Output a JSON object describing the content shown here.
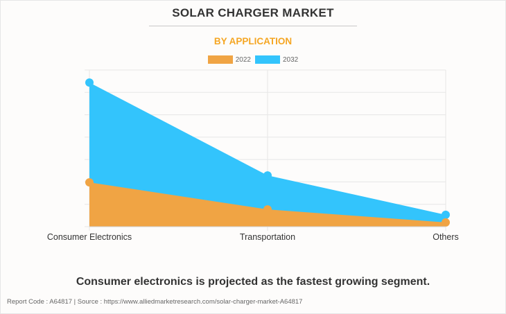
{
  "header": {
    "title": "SOLAR CHARGER MARKET",
    "subtitle": "BY APPLICATION"
  },
  "caption": "Consumer electronics is projected as the fastest growing segment.",
  "footer": "Report Code : A64817  |  Source : https://www.alliedmarketresearch.com/solar-charger-market-A64817",
  "colors": {
    "series_2022": "#f0a444",
    "series_2032": "#33c4fc",
    "subtitle": "#f5a623",
    "grid": "#e6e6e6"
  },
  "chart_data": {
    "type": "area",
    "title": "SOLAR CHARGER MARKET",
    "subtitle": "BY APPLICATION",
    "xlabel": "",
    "ylabel": "",
    "categories": [
      "Consumer Electronics",
      "Transportation",
      "Others"
    ],
    "series": [
      {
        "name": "2032",
        "color": "#33c4fc",
        "values": [
          6.44,
          2.29,
          0.53
        ]
      },
      {
        "name": "2022",
        "color": "#f0a444",
        "values": [
          1.98,
          0.77,
          0.19
        ]
      }
    ],
    "ylim": [
      0,
      7
    ],
    "y_gridlines": 7,
    "y_ticks_labeled": false,
    "grid": true,
    "legend": {
      "position": "top-center",
      "entries": [
        "2022",
        "2032"
      ]
    },
    "units_note": "values in gridline units (no y-axis labels shown)"
  }
}
